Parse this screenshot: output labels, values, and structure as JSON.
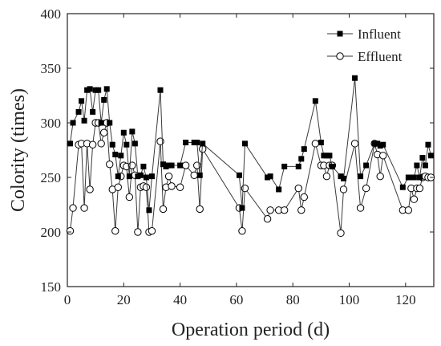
{
  "chart_data": {
    "type": "line",
    "title": "",
    "xlabel": "Operation period (d)",
    "ylabel": "Colority (times)",
    "xlim": [
      0,
      130
    ],
    "ylim": [
      150,
      400
    ],
    "xticks": [
      0,
      20,
      40,
      60,
      80,
      100,
      120
    ],
    "yticks": [
      150,
      200,
      250,
      300,
      350,
      400
    ],
    "grid": false,
    "legend_position": "top-right",
    "series": [
      {
        "name": "Influent",
        "marker": "filled-square",
        "color": "#000000",
        "points": [
          [
            1,
            281
          ],
          [
            2,
            300
          ],
          [
            4,
            310
          ],
          [
            5,
            320
          ],
          [
            6,
            302
          ],
          [
            7,
            330
          ],
          [
            8,
            331
          ],
          [
            9,
            310
          ],
          [
            10,
            330
          ],
          [
            11,
            330
          ],
          [
            12,
            300
          ],
          [
            13,
            321
          ],
          [
            14,
            331
          ],
          [
            15,
            300
          ],
          [
            16,
            280
          ],
          [
            17,
            271
          ],
          [
            18,
            251
          ],
          [
            19,
            270
          ],
          [
            20,
            291
          ],
          [
            21,
            280
          ],
          [
            22,
            251
          ],
          [
            23,
            292
          ],
          [
            24,
            281
          ],
          [
            25,
            251
          ],
          [
            26,
            252
          ],
          [
            27,
            260
          ],
          [
            28,
            250
          ],
          [
            29,
            220
          ],
          [
            30,
            251
          ],
          [
            33,
            330
          ],
          [
            34,
            262
          ],
          [
            35,
            260
          ],
          [
            36,
            261
          ],
          [
            37,
            261
          ],
          [
            40,
            261
          ],
          [
            42,
            282
          ],
          [
            45,
            282
          ],
          [
            46,
            282
          ],
          [
            47,
            252
          ],
          [
            48,
            281
          ],
          [
            61,
            252
          ],
          [
            62,
            222
          ],
          [
            63,
            281
          ],
          [
            71,
            250
          ],
          [
            72,
            251
          ],
          [
            75,
            239
          ],
          [
            77,
            260
          ],
          [
            82,
            260
          ],
          [
            83,
            267
          ],
          [
            84,
            276
          ],
          [
            88,
            320
          ],
          [
            90,
            282
          ],
          [
            91,
            270
          ],
          [
            92,
            270
          ],
          [
            93,
            270
          ],
          [
            94,
            260
          ],
          [
            97,
            251
          ],
          [
            98,
            249
          ],
          [
            102,
            341
          ],
          [
            104,
            251
          ],
          [
            106,
            261
          ],
          [
            109,
            281
          ],
          [
            110,
            281
          ],
          [
            111,
            279
          ],
          [
            112,
            280
          ],
          [
            119,
            241
          ],
          [
            121,
            250
          ],
          [
            122,
            250
          ],
          [
            123,
            250
          ],
          [
            124,
            261
          ],
          [
            125,
            250
          ],
          [
            126,
            268
          ],
          [
            127,
            261
          ],
          [
            128,
            280
          ],
          [
            129,
            270
          ]
        ]
      },
      {
        "name": "Effluent",
        "marker": "open-circle",
        "color": "#000000",
        "points": [
          [
            1,
            201
          ],
          [
            2,
            222
          ],
          [
            4,
            280
          ],
          [
            5,
            281
          ],
          [
            6,
            222
          ],
          [
            7,
            281
          ],
          [
            8,
            239
          ],
          [
            9,
            280
          ],
          [
            10,
            300
          ],
          [
            11,
            300
          ],
          [
            12,
            281
          ],
          [
            13,
            291
          ],
          [
            14,
            300
          ],
          [
            15,
            262
          ],
          [
            16,
            239
          ],
          [
            17,
            201
          ],
          [
            18,
            241
          ],
          [
            19,
            251
          ],
          [
            20,
            261
          ],
          [
            21,
            260
          ],
          [
            22,
            232
          ],
          [
            23,
            261
          ],
          [
            24,
            252
          ],
          [
            25,
            200
          ],
          [
            26,
            241
          ],
          [
            27,
            242
          ],
          [
            28,
            241
          ],
          [
            29,
            200
          ],
          [
            30,
            201
          ],
          [
            33,
            283
          ],
          [
            34,
            221
          ],
          [
            35,
            241
          ],
          [
            36,
            251
          ],
          [
            37,
            242
          ],
          [
            40,
            241
          ],
          [
            42,
            261
          ],
          [
            45,
            252
          ],
          [
            46,
            261
          ],
          [
            47,
            221
          ],
          [
            48,
            276
          ],
          [
            61,
            222
          ],
          [
            62,
            201
          ],
          [
            63,
            240
          ],
          [
            71,
            212
          ],
          [
            72,
            220
          ],
          [
            75,
            220
          ],
          [
            77,
            220
          ],
          [
            82,
            240
          ],
          [
            83,
            220
          ],
          [
            84,
            232
          ],
          [
            88,
            281
          ],
          [
            90,
            261
          ],
          [
            91,
            261
          ],
          [
            92,
            251
          ],
          [
            93,
            261
          ],
          [
            94,
            261
          ],
          [
            97,
            199
          ],
          [
            98,
            239
          ],
          [
            102,
            281
          ],
          [
            104,
            222
          ],
          [
            106,
            240
          ],
          [
            109,
            281
          ],
          [
            110,
            271
          ],
          [
            111,
            251
          ],
          [
            112,
            270
          ],
          [
            119,
            220
          ],
          [
            121,
            220
          ],
          [
            122,
            240
          ],
          [
            123,
            230
          ],
          [
            124,
            240
          ],
          [
            125,
            240
          ],
          [
            126,
            250
          ],
          [
            127,
            251
          ],
          [
            128,
            250
          ],
          [
            129,
            250
          ]
        ]
      }
    ]
  }
}
